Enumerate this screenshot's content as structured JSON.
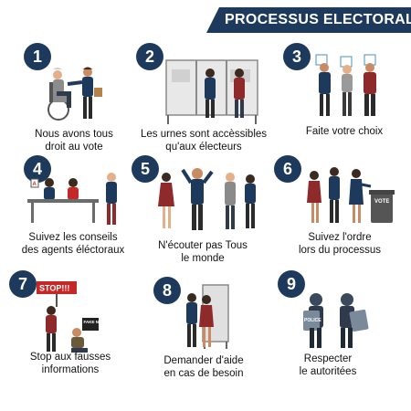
{
  "title": "PROCESSUS ELECTORAL",
  "colors": {
    "navy": "#1d3a5c",
    "red": "#c62828",
    "grey": "#6b6b6b"
  },
  "steps": [
    {
      "number": "1",
      "lines": [
        "Nous avons tous",
        "droit au vote"
      ]
    },
    {
      "number": "2",
      "lines": [
        "Les urnes sont accèssibles",
        "qu'aux électeurs"
      ]
    },
    {
      "number": "3",
      "lines": [
        "Faite votre choix"
      ]
    },
    {
      "number": "4",
      "lines": [
        "Suivez les conseils",
        "des agents éléctoraux"
      ]
    },
    {
      "number": "5",
      "lines": [
        "N'écouter pas Tous",
        "le monde"
      ]
    },
    {
      "number": "6",
      "lines": [
        "Suivez l'ordre",
        "lors du processus"
      ]
    },
    {
      "number": "7",
      "lines": [
        "Stop aux fausses",
        "informations"
      ]
    },
    {
      "number": "8",
      "lines": [
        "Demander d'aide",
        "en cas de besoin"
      ]
    },
    {
      "number": "9",
      "lines": [
        "Respecter",
        "le autoritées"
      ]
    }
  ],
  "illustration_text": {
    "vote_box": "VOTE",
    "stop_sign": "STOP!!!",
    "fake_sign": "FAKE NEWS",
    "police_shield": "POLICE"
  }
}
